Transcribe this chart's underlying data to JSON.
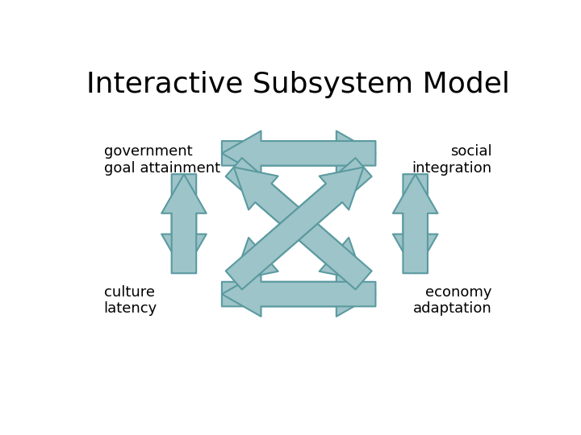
{
  "title": "Interactive Subsystem Model",
  "title_fontsize": 26,
  "label_fontsize": 13,
  "arrow_color": "#9DC4C8",
  "arrow_edge_color": "#5A9AA0",
  "background_color": "#ffffff",
  "labels": {
    "top_left": "government\ngoal attainment",
    "top_right": "social\nintegration",
    "bottom_left": "culture\nlatency",
    "bottom_right": "economy\nadaptation"
  }
}
